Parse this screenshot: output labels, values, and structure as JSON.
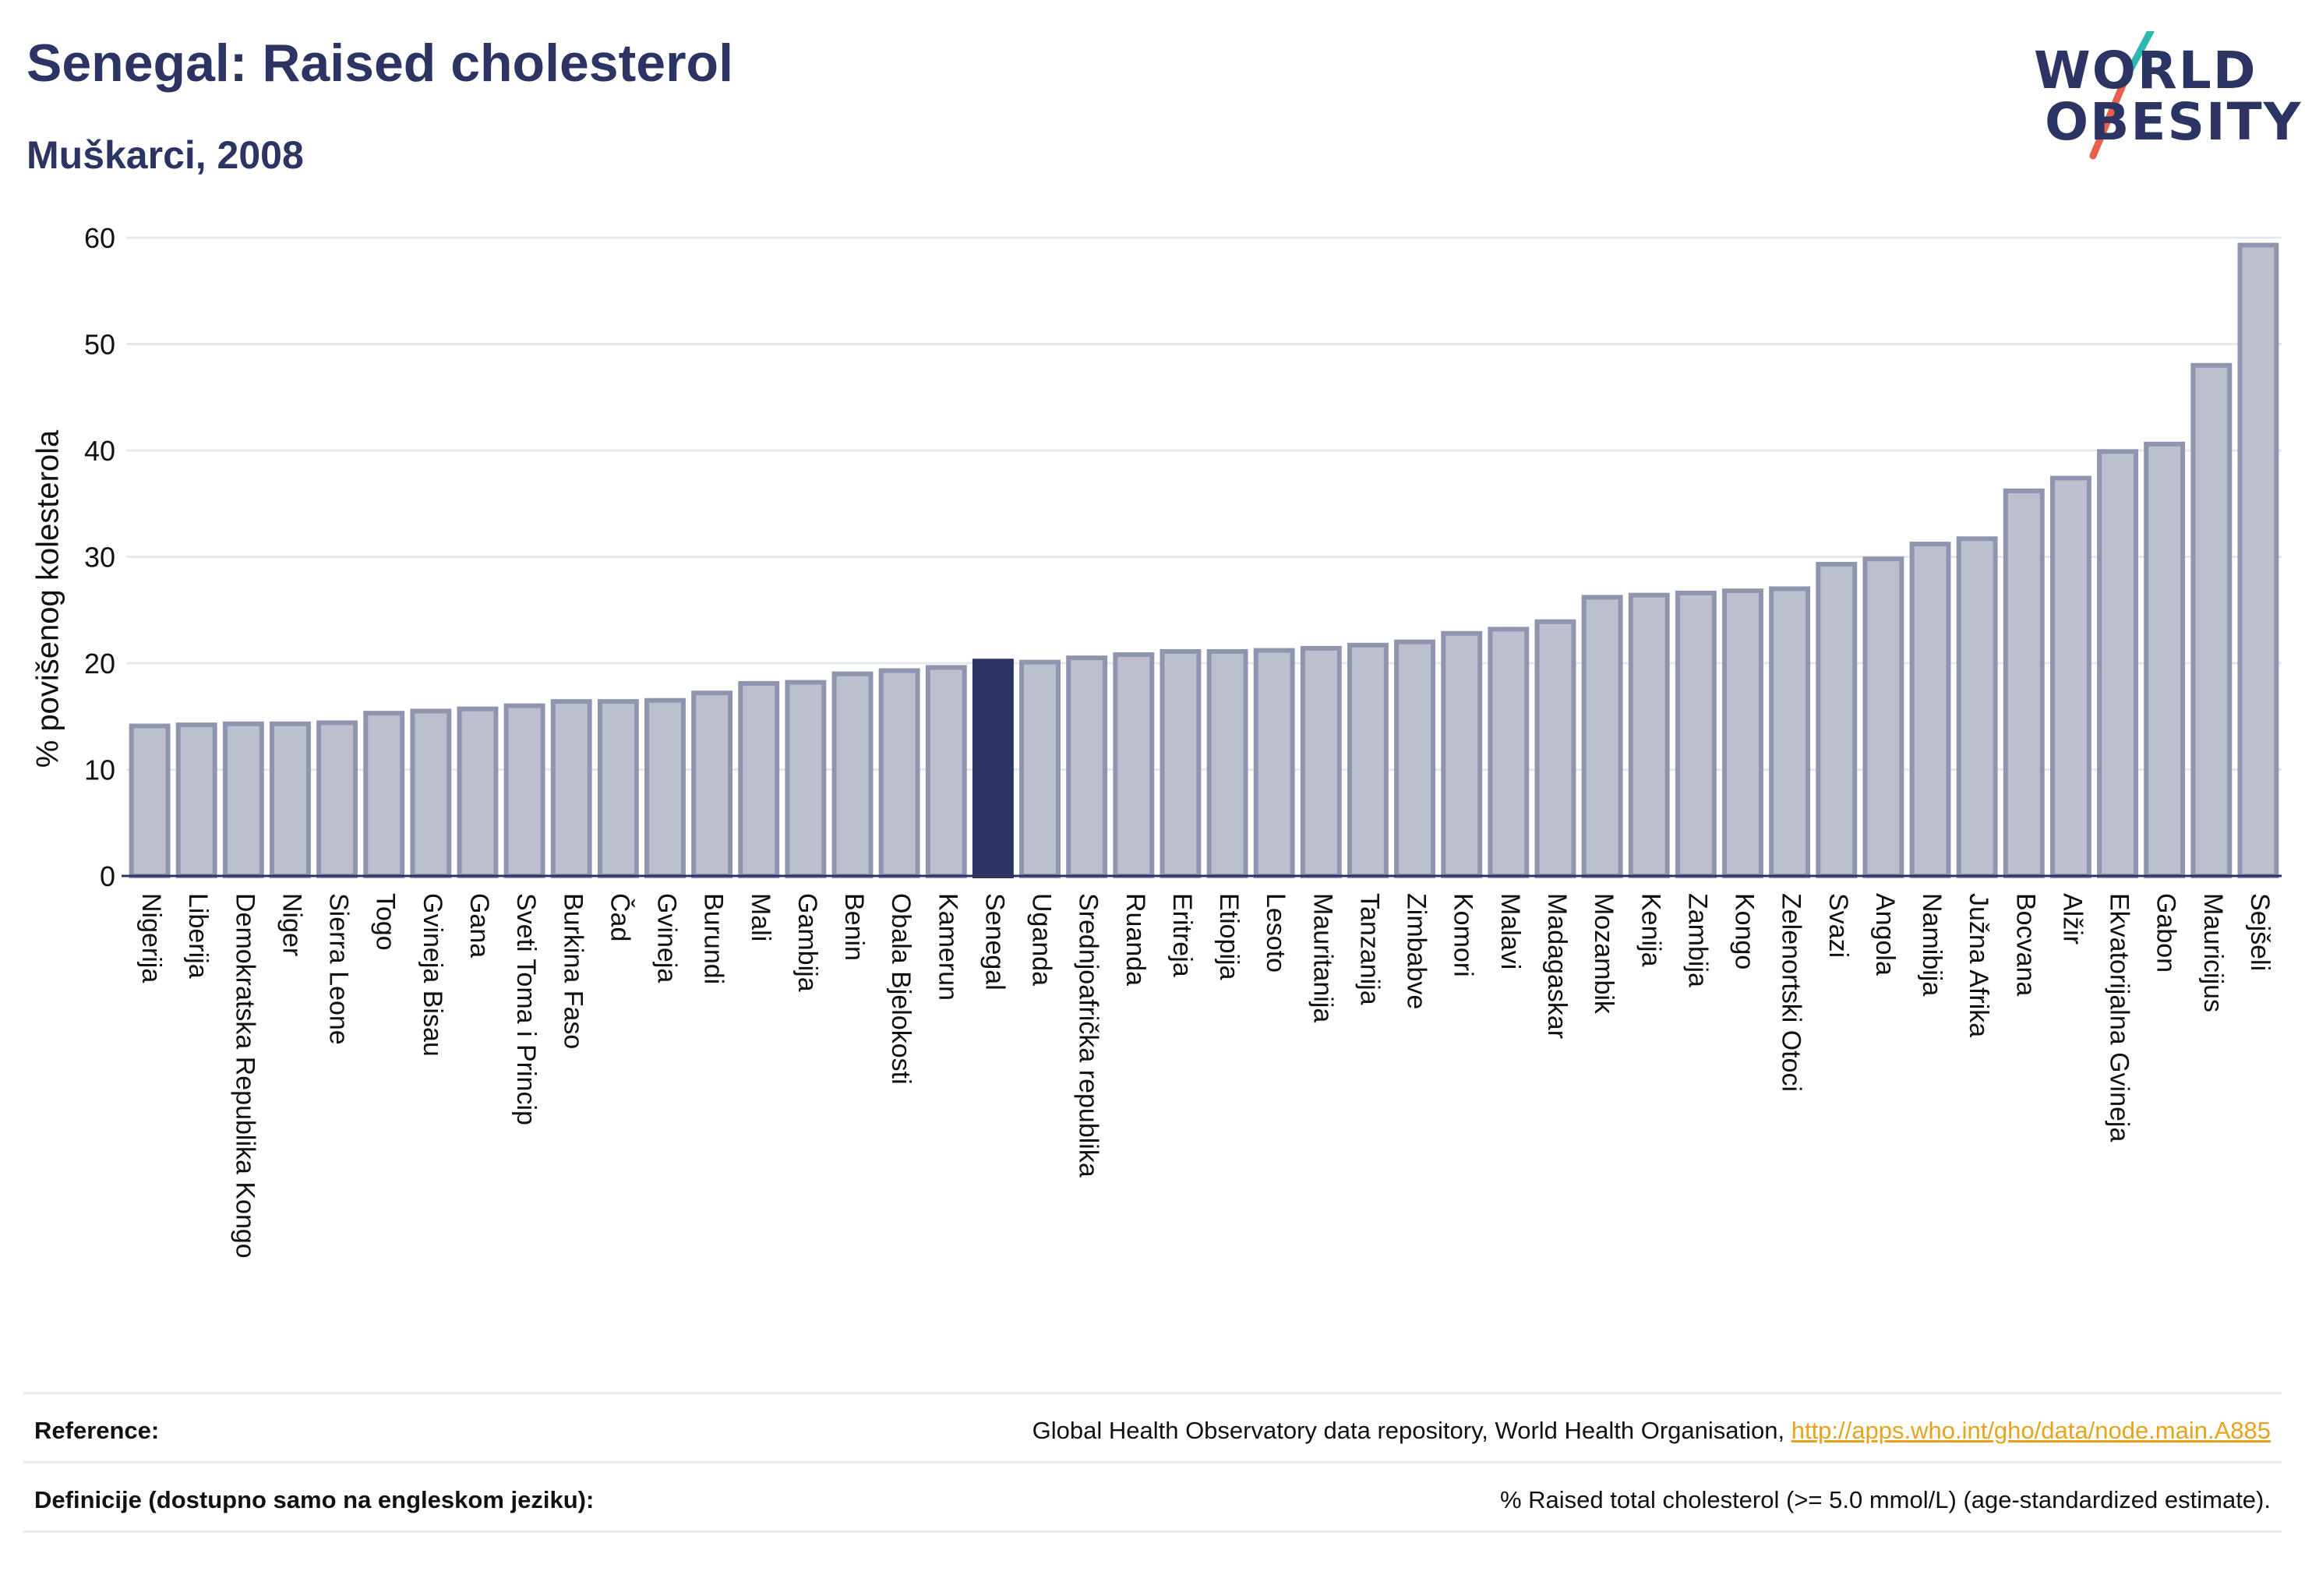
{
  "header": {
    "title": "Senegal: Raised cholesterol",
    "subtitle": "Muškarci, 2008"
  },
  "logo": {
    "line1": "WORLD",
    "line2": "OBESITY"
  },
  "colors": {
    "bar_fill": "#bcc0ce",
    "bar_stroke": "#8f95ae",
    "highlight": "#2b3462",
    "logo_slash_teal": "#2fb8b0",
    "logo_slash_red": "#e8604c",
    "link": "#e8a21c"
  },
  "chart_data": {
    "type": "bar",
    "title": "Senegal: Raised cholesterol",
    "subtitle": "Muškarci, 2008",
    "xlabel": "",
    "ylabel": "% povišenog kolesterola",
    "ylim": [
      0,
      60
    ],
    "yticks": [
      0,
      10,
      20,
      30,
      40,
      50,
      60
    ],
    "grid": true,
    "highlight": "Senegal",
    "categories": [
      "Nigerija",
      "Liberija",
      "Demokratska Republika Kongo",
      "Niger",
      "Sierra Leone",
      "Togo",
      "Gvineja Bisau",
      "Gana",
      "Sveti Toma i Princip",
      "Burkina Faso",
      "Čad",
      "Gvineja",
      "Burundi",
      "Mali",
      "Gambija",
      "Benin",
      "Obala Bjelokosti",
      "Kamerun",
      "Senegal",
      "Uganda",
      "Srednjoafrička republika",
      "Ruanda",
      "Eritreja",
      "Etiopija",
      "Lesoto",
      "Mauritanija",
      "Tanzanija",
      "Zimbabve",
      "Komori",
      "Malavi",
      "Madagaskar",
      "Mozambik",
      "Kenija",
      "Zambija",
      "Kongo",
      "Zelenortski Otoci",
      "Svazi",
      "Angola",
      "Namibija",
      "Južna Afrika",
      "Bocvana",
      "Alžir",
      "Ekvatorijalna Gvineja",
      "Gabon",
      "Mauricijus",
      "Sejšeli"
    ],
    "values": [
      14.1,
      14.2,
      14.3,
      14.3,
      14.4,
      15.3,
      15.5,
      15.7,
      16.0,
      16.4,
      16.4,
      16.5,
      17.2,
      18.1,
      18.2,
      19.0,
      19.3,
      19.6,
      20.2,
      20.1,
      20.5,
      20.8,
      21.1,
      21.1,
      21.2,
      21.4,
      21.7,
      22.0,
      22.8,
      23.2,
      23.9,
      26.2,
      26.4,
      26.6,
      26.8,
      27.0,
      29.3,
      29.8,
      31.2,
      31.7,
      36.2,
      37.4,
      39.9,
      40.6,
      48.0,
      59.3
    ]
  },
  "footer": {
    "reference_label": "Reference:",
    "reference_text": "Global Health Observatory data repository, World Health Organisation, ",
    "reference_link": "http://apps.who.int/gho/data/node.main.A885",
    "definition_label": "Definicije (dostupno samo na engleskom jeziku):",
    "definition_text": "% Raised total cholesterol (>= 5.0 mmol/L) (age-standardized estimate)."
  }
}
